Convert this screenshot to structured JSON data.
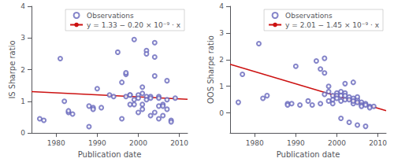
{
  "chart_data": [
    {
      "type": "scatter",
      "xlabel": "Publication date",
      "ylabel": "IS Sharpe ratio",
      "xlim": [
        1974,
        2012
      ],
      "ylim": [
        0,
        4
      ],
      "xticks": [
        1980,
        1990,
        2000,
        2010
      ],
      "yticks": [
        0,
        1,
        2,
        3,
        4
      ],
      "grid": false,
      "legend": "upper right",
      "series": [
        {
          "name": "Observations",
          "type": "scatter",
          "marker": "circle",
          "color": "#6666bb",
          "x": [
            1976,
            1977,
            1981,
            1982,
            1983,
            1983,
            1984,
            1988,
            1988,
            1989,
            1989,
            1990,
            1991,
            1993,
            1994,
            1995,
            1996,
            1996,
            1997,
            1997,
            1997,
            1998,
            1998,
            1998,
            1999,
            1999,
            1999,
            2000,
            2000,
            2000,
            2001,
            2001,
            2001,
            2001,
            2002,
            2002,
            2002,
            2002,
            2003,
            2003,
            2003,
            2004,
            2004,
            2004,
            2004,
            2005,
            2005,
            2005,
            2005,
            2006,
            2006,
            2006,
            2007,
            2007,
            2007,
            2008,
            2008,
            2009
          ],
          "values": [
            0.45,
            0.4,
            2.35,
            1.0,
            0.65,
            0.7,
            0.6,
            0.2,
            0.85,
            0.8,
            0.75,
            1.4,
            0.8,
            1.2,
            1.15,
            2.55,
            0.45,
            1.6,
            1.85,
            1.9,
            1.15,
            1.2,
            1.2,
            0.9,
            0.9,
            1.05,
            2.95,
            1.2,
            0.65,
            1.1,
            1.25,
            1.45,
            0.9,
            0.75,
            1.15,
            2.6,
            1.05,
            2.5,
            1.15,
            0.55,
            1.1,
            0.65,
            2.85,
            1.8,
            2.4,
            1.15,
            0.45,
            1.1,
            0.85,
            0.9,
            0.85,
            0.55,
            0.75,
            1.65,
            1.05,
            0.4,
            0.35,
            1.1
          ]
        },
        {
          "name": "y = 1.33 − 0.20 × 10⁻⁹ · x",
          "type": "line",
          "line_style": "solid",
          "color": "#cc1111",
          "x": [
            1974,
            2012
          ],
          "values": [
            1.30475392,
            1.06491616
          ]
        }
      ]
    },
    {
      "type": "scatter",
      "xlabel": "Publication date",
      "ylabel": "OOS Sharpe ratio",
      "xlim": [
        1974,
        2012
      ],
      "ylim": [
        -0.75,
        4
      ],
      "xticks": [
        1980,
        1990,
        2000,
        2010
      ],
      "yticks": [
        0,
        1,
        2,
        3,
        4
      ],
      "grid": false,
      "legend": "upper right",
      "series": [
        {
          "name": "Observations",
          "type": "scatter",
          "marker": "circle",
          "color": "#6666bb",
          "x": [
            1976,
            1977,
            1981,
            1982,
            1983,
            1988,
            1988,
            1989,
            1990,
            1991,
            1993,
            1994,
            1995,
            1996,
            1996,
            1997,
            1997,
            1997,
            1998,
            1998,
            1998,
            1999,
            1999,
            1999,
            2000,
            2000,
            2000,
            2001,
            2001,
            2001,
            2001,
            2002,
            2002,
            2002,
            2002,
            2003,
            2003,
            2003,
            2004,
            2004,
            2004,
            2004,
            2005,
            2005,
            2005,
            2005,
            2006,
            2006,
            2006,
            2007,
            2007,
            2007,
            2008,
            2008,
            2009
          ],
          "values": [
            0.4,
            1.45,
            2.6,
            0.55,
            0.65,
            0.35,
            0.3,
            0.35,
            1.75,
            0.3,
            0.45,
            0.3,
            1.95,
            0.35,
            1.65,
            1.5,
            0.7,
            2.05,
            0.8,
            1.0,
            0.45,
            0.65,
            0.5,
            0.35,
            0.75,
            0.65,
            0.55,
            0.8,
            0.65,
            0.45,
            -0.2,
            0.75,
            1.1,
            0.65,
            0.5,
            0.6,
            -0.35,
            0.5,
            0.55,
            1.15,
            0.35,
            0.45,
            0.5,
            0.4,
            -0.45,
            0.6,
            0.4,
            0.3,
            0.25,
            -0.5,
            0.35,
            0.3,
            0.25,
            0.2,
            0.25
          ]
        },
        {
          "name": "y = 2.01 − 1.45 × 10⁻⁹ · x",
          "type": "line",
          "line_style": "solid",
          "color": "#cc1111",
          "x": [
            1974,
            2012
          ],
          "values": [
            1.82696592,
            0.08814216
          ]
        }
      ]
    }
  ]
}
